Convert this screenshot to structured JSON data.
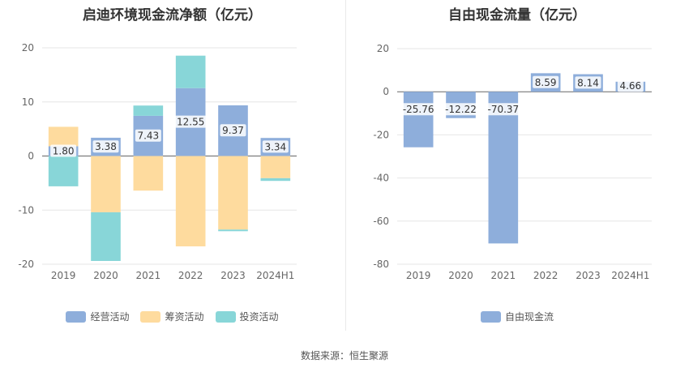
{
  "source": "数据来源：恒生聚源",
  "chart_data": [
    {
      "type": "bar",
      "title": "启迪环境现金流净额（亿元）",
      "categories": [
        "2019",
        "2020",
        "2021",
        "2022",
        "2023",
        "2024H1"
      ],
      "ylim": [
        -20,
        20
      ],
      "yticks": [
        20,
        10,
        0,
        -10,
        -20
      ],
      "legend_position": "bottom",
      "series": [
        {
          "name": "经营活动",
          "color": "#8eaedb",
          "values": [
            1.8,
            3.38,
            7.43,
            12.55,
            9.37,
            3.34
          ],
          "labels": [
            "1.80",
            "3.38",
            "7.43",
            "12.55",
            "9.37",
            "3.34"
          ]
        },
        {
          "name": "筹资活动",
          "color": "#fedb9e",
          "values": [
            3.6,
            -10.4,
            -6.4,
            -16.7,
            -13.6,
            -4.1
          ]
        },
        {
          "name": "投资活动",
          "color": "#88d6d8",
          "values": [
            -5.6,
            -9.0,
            1.9,
            6.0,
            -0.3,
            -0.5
          ]
        }
      ]
    },
    {
      "type": "bar",
      "title": "自由现金流量（亿元）",
      "categories": [
        "2019",
        "2020",
        "2021",
        "2022",
        "2023",
        "2024H1"
      ],
      "ylim": [
        -80,
        20
      ],
      "yticks": [
        20,
        0,
        -20,
        -40,
        -60,
        -80
      ],
      "legend_position": "bottom",
      "series": [
        {
          "name": "自由现金流",
          "color": "#8eaedb",
          "values": [
            -25.76,
            -12.22,
            -70.37,
            8.59,
            8.14,
            4.66
          ],
          "labels": [
            "-25.76",
            "-12.22",
            "-70.37",
            "8.59",
            "8.14",
            "4.66"
          ]
        }
      ]
    }
  ]
}
